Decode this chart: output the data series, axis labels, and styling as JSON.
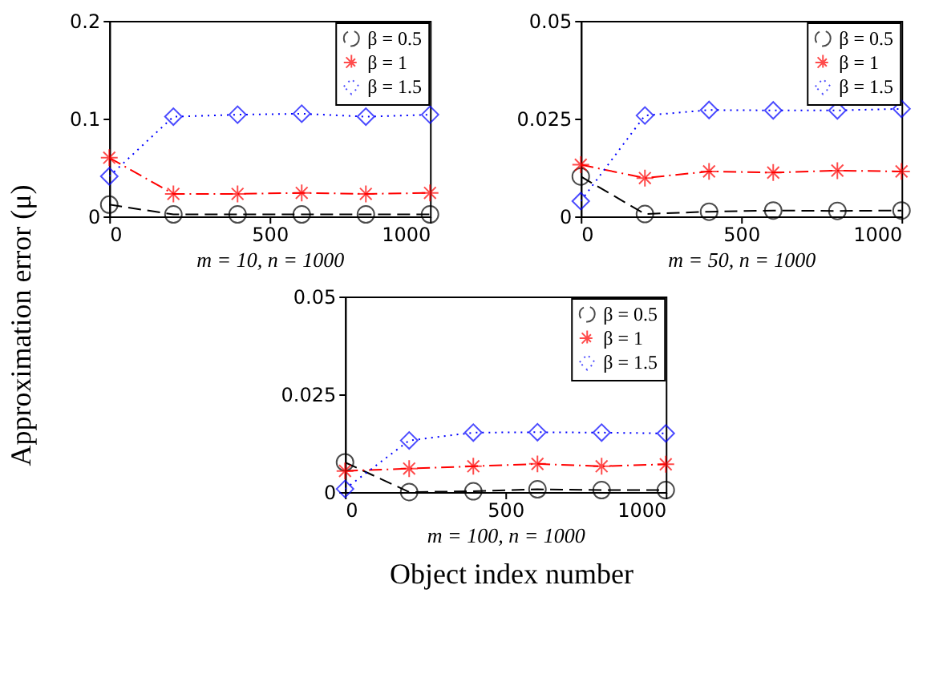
{
  "chart_data": [
    {
      "type": "line",
      "ylabel": "Approximation error (μ)",
      "xlabel": "m = 10, n = 1000",
      "x": [
        0,
        200,
        400,
        600,
        800,
        1000
      ],
      "xlim": [
        0,
        1000
      ],
      "xticks": [
        0,
        500,
        1000
      ],
      "ylim": [
        0,
        0.2
      ],
      "yticks": [
        0,
        0.1,
        0.2
      ],
      "grid": false,
      "legend": "top right",
      "series": [
        {
          "name": "β = 0.5",
          "color": "#000000",
          "marker": "circle",
          "line_style": "dashed",
          "values": [
            0.012,
            0.002,
            0.002,
            0.002,
            0.002,
            0.002
          ]
        },
        {
          "name": "β = 1",
          "color": "#ff0000",
          "marker": "cross",
          "line_style": "dashdot",
          "values": [
            0.06,
            0.023,
            0.023,
            0.024,
            0.023,
            0.024
          ]
        },
        {
          "name": "β = 1.5",
          "color": "#0000ff",
          "marker": "diamond",
          "line_style": "dotted",
          "values": [
            0.041,
            0.102,
            0.104,
            0.105,
            0.102,
            0.104
          ]
        }
      ]
    },
    {
      "type": "line",
      "xlabel": "m = 50, n = 1000",
      "x": [
        0,
        200,
        400,
        600,
        800,
        1000
      ],
      "xlim": [
        0,
        1000
      ],
      "xticks": [
        0,
        500,
        1000
      ],
      "ylim": [
        0,
        0.05
      ],
      "yticks": [
        0,
        0.025,
        0.05
      ],
      "grid": false,
      "legend": "top right",
      "series": [
        {
          "name": "β = 0.5",
          "color": "#000000",
          "marker": "circle",
          "line_style": "dashed",
          "values": [
            0.0102,
            0.0006,
            0.0012,
            0.0015,
            0.0014,
            0.0015
          ]
        },
        {
          "name": "β = 1",
          "color": "#ff0000",
          "marker": "cross",
          "line_style": "dashdot",
          "values": [
            0.0132,
            0.0098,
            0.0115,
            0.0112,
            0.0117,
            0.0115
          ]
        },
        {
          "name": "β = 1.5",
          "color": "#0000ff",
          "marker": "diamond",
          "line_style": "dotted",
          "values": [
            0.0039,
            0.0258,
            0.0272,
            0.0271,
            0.0271,
            0.0275
          ]
        }
      ]
    },
    {
      "type": "line",
      "xlabel": "m = 100, n = 1000",
      "annotations": [
        "Object index number"
      ],
      "x": [
        0,
        200,
        400,
        600,
        800,
        1000
      ],
      "xlim": [
        0,
        1000
      ],
      "xticks": [
        0,
        500,
        1000
      ],
      "ylim": [
        0,
        0.05
      ],
      "yticks": [
        0,
        0.025,
        0.05
      ],
      "grid": false,
      "legend": "top right",
      "series": [
        {
          "name": "β = 0.5",
          "color": "#000000",
          "marker": "circle",
          "line_style": "dashed",
          "values": [
            0.0076,
            0.0,
            0.0002,
            0.0007,
            0.0005,
            0.0005
          ]
        },
        {
          "name": "β = 1",
          "color": "#ff0000",
          "marker": "cross",
          "line_style": "dashdot",
          "values": [
            0.0054,
            0.006,
            0.0066,
            0.0072,
            0.0066,
            0.0071
          ]
        },
        {
          "name": "β = 1.5",
          "color": "#0000ff",
          "marker": "diamond",
          "line_style": "dotted",
          "values": [
            0.0008,
            0.0132,
            0.0152,
            0.0153,
            0.0152,
            0.015
          ]
        }
      ]
    }
  ]
}
